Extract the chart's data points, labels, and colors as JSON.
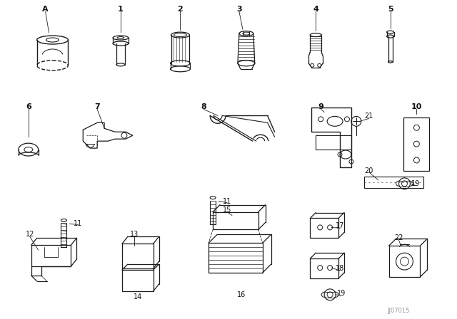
{
  "background_color": "#ffffff",
  "line_color": "#1a1a1a",
  "watermark": "JJ07015",
  "font_color": "#111111"
}
